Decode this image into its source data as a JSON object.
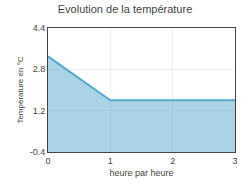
{
  "chart_data": {
    "type": "area",
    "title": "Evolution de la température",
    "xlabel": "heure par heure",
    "ylabel": "Température en °C",
    "x": [
      0,
      1,
      3
    ],
    "values": [
      3.3,
      1.6,
      1.6
    ],
    "color": "#55aacc",
    "xlim": [
      0,
      3
    ],
    "ylim": [
      -0.4,
      4.4
    ],
    "xticks": [
      0,
      1,
      2,
      3
    ],
    "yticks": [
      -0.4,
      1.2,
      2.8,
      4.4
    ],
    "grid": true
  }
}
